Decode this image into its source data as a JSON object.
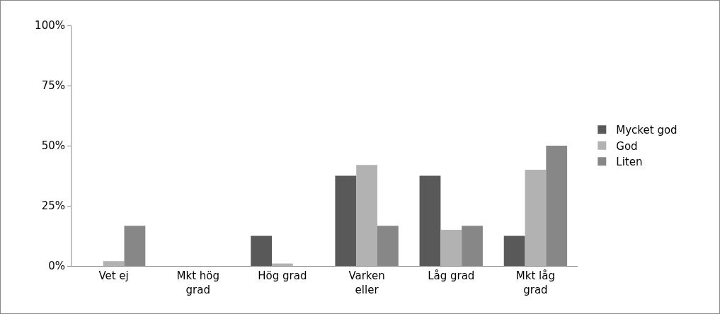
{
  "chart_data": {
    "type": "bar",
    "categories": [
      "Vet ej",
      "Mkt hög grad",
      "Hög grad",
      "Varken eller",
      "Låg grad",
      "Mkt låg grad"
    ],
    "series": [
      {
        "name": "Mycket god",
        "color": "#595959",
        "values": [
          0,
          0,
          12.5,
          37.5,
          37.5,
          12.5
        ]
      },
      {
        "name": "God",
        "color": "#b2b2b2",
        "values": [
          2,
          0,
          1,
          42,
          15,
          40
        ]
      },
      {
        "name": "Liten",
        "color": "#878787",
        "values": [
          16.7,
          0,
          0,
          16.7,
          16.7,
          50
        ]
      }
    ],
    "ylim": [
      0,
      100
    ],
    "yticks": [
      {
        "value": 0,
        "label": "0%"
      },
      {
        "value": 25,
        "label": "25%"
      },
      {
        "value": 50,
        "label": "50%"
      },
      {
        "value": 75,
        "label": "75%"
      },
      {
        "value": 100,
        "label": "100%"
      }
    ],
    "grid": false,
    "legend": "right"
  }
}
